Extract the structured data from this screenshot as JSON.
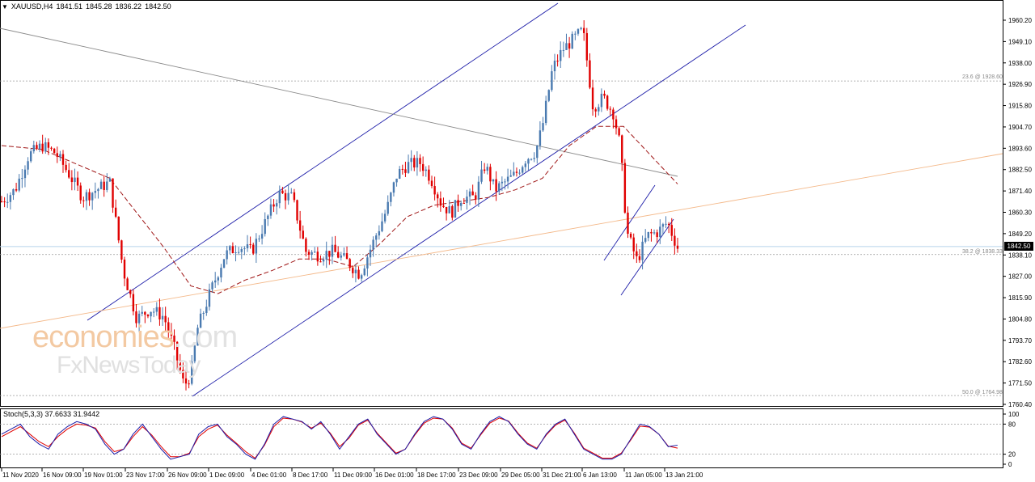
{
  "header": {
    "symbol": "XAUUSD,H4",
    "open": "1841.51",
    "high": "1845.28",
    "low": "1836.22",
    "close": "1842.50"
  },
  "indicator_header": "Stoch(5,3,3) 37.6633 31.9442",
  "watermark": {
    "line1_a": "economies",
    "line1_b": ".com",
    "line2": "FxNewsToday"
  },
  "fib_levels": [
    {
      "label": "23.6 @ 1928.60",
      "price": 1928.6
    },
    {
      "label": "38.2 @ 1838.33",
      "price": 1838.33
    },
    {
      "label": "50.0 @ 1764.98",
      "price": 1764.98
    }
  ],
  "current_price": "1842.50",
  "colors": {
    "bull": "#4a7ab0",
    "bear": "#e00000",
    "channel": "#1c1ca8",
    "ma": "#a01818",
    "stoch_main": "#1c1ca8",
    "stoch_signal": "#e00000"
  },
  "chart_data": {
    "type": "candlestick",
    "symbol": "XAUUSD",
    "timeframe": "H4",
    "price_axis": {
      "ticks": [
        "1960.20",
        "1949.10",
        "1938.00",
        "1926.90",
        "1915.80",
        "1904.70",
        "1893.60",
        "1882.50",
        "1871.40",
        "1860.30",
        "1849.20",
        "1838.10",
        "1827.00",
        "1815.90",
        "1804.80",
        "1793.70",
        "1782.60",
        "1771.50",
        "1760.40"
      ],
      "ylim": [
        1757.0,
        1968.0
      ]
    },
    "time_axis": {
      "ticks": [
        "11 Nov 2020",
        "16 Nov 09:00",
        "19 Nov 01:00",
        "23 Nov 17:00",
        "26 Nov 09:00",
        "1 Dec 09:00",
        "4 Dec 01:00",
        "8 Dec 17:00",
        "11 Dec 09:00",
        "16 Dec 01:00",
        "18 Dec 17:00",
        "23 Dec 09:00",
        "29 Dec 05:00",
        "31 Dec 21:00",
        "6 Jan 13:00",
        "11 Jan 05:00",
        "13 Jan 21:00"
      ]
    },
    "close_path": [
      {
        "t": 0,
        "c": 1866
      },
      {
        "t": 0.02,
        "c": 1872
      },
      {
        "t": 0.04,
        "c": 1890
      },
      {
        "t": 0.06,
        "c": 1895
      },
      {
        "t": 0.08,
        "c": 1891
      },
      {
        "t": 0.1,
        "c": 1880
      },
      {
        "t": 0.12,
        "c": 1868
      },
      {
        "t": 0.14,
        "c": 1872
      },
      {
        "t": 0.16,
        "c": 1876
      },
      {
        "t": 0.18,
        "c": 1830
      },
      {
        "t": 0.2,
        "c": 1805
      },
      {
        "t": 0.22,
        "c": 1810
      },
      {
        "t": 0.24,
        "c": 1806
      },
      {
        "t": 0.255,
        "c": 1790
      },
      {
        "t": 0.27,
        "c": 1770
      },
      {
        "t": 0.28,
        "c": 1776
      },
      {
        "t": 0.29,
        "c": 1800
      },
      {
        "t": 0.31,
        "c": 1820
      },
      {
        "t": 0.33,
        "c": 1838
      },
      {
        "t": 0.35,
        "c": 1843
      },
      {
        "t": 0.37,
        "c": 1840
      },
      {
        "t": 0.39,
        "c": 1855
      },
      {
        "t": 0.41,
        "c": 1870
      },
      {
        "t": 0.43,
        "c": 1868
      },
      {
        "t": 0.45,
        "c": 1840
      },
      {
        "t": 0.47,
        "c": 1838
      },
      {
        "t": 0.49,
        "c": 1840
      },
      {
        "t": 0.51,
        "c": 1835
      },
      {
        "t": 0.53,
        "c": 1828
      },
      {
        "t": 0.55,
        "c": 1845
      },
      {
        "t": 0.57,
        "c": 1862
      },
      {
        "t": 0.585,
        "c": 1880
      },
      {
        "t": 0.6,
        "c": 1885
      },
      {
        "t": 0.62,
        "c": 1886
      },
      {
        "t": 0.635,
        "c": 1878
      },
      {
        "t": 0.65,
        "c": 1865
      },
      {
        "t": 0.665,
        "c": 1860
      },
      {
        "t": 0.68,
        "c": 1868
      },
      {
        "t": 0.7,
        "c": 1868
      },
      {
        "t": 0.715,
        "c": 1885
      },
      {
        "t": 0.73,
        "c": 1872
      },
      {
        "t": 0.745,
        "c": 1876
      },
      {
        "t": 0.76,
        "c": 1880
      },
      {
        "t": 0.775,
        "c": 1888
      },
      {
        "t": 0.79,
        "c": 1892
      },
      {
        "t": 0.8,
        "c": 1905
      },
      {
        "t": 0.815,
        "c": 1935
      },
      {
        "t": 0.83,
        "c": 1945
      },
      {
        "t": 0.845,
        "c": 1950
      },
      {
        "t": 0.86,
        "c": 1955
      },
      {
        "t": 0.875,
        "c": 1915
      },
      {
        "t": 0.89,
        "c": 1920
      },
      {
        "t": 0.905,
        "c": 1912
      },
      {
        "t": 0.915,
        "c": 1895
      },
      {
        "t": 0.925,
        "c": 1850
      },
      {
        "t": 0.94,
        "c": 1835
      },
      {
        "t": 0.955,
        "c": 1848
      },
      {
        "t": 0.97,
        "c": 1850
      },
      {
        "t": 0.985,
        "c": 1855
      },
      {
        "t": 1.0,
        "c": 1842
      }
    ],
    "moving_average": {
      "style": "dashed",
      "points": [
        {
          "t": 0,
          "c": 1895
        },
        {
          "t": 0.06,
          "c": 1893
        },
        {
          "t": 0.12,
          "c": 1884
        },
        {
          "t": 0.16,
          "c": 1878
        },
        {
          "t": 0.2,
          "c": 1860
        },
        {
          "t": 0.24,
          "c": 1842
        },
        {
          "t": 0.28,
          "c": 1822
        },
        {
          "t": 0.32,
          "c": 1818
        },
        {
          "t": 0.36,
          "c": 1825
        },
        {
          "t": 0.4,
          "c": 1830
        },
        {
          "t": 0.44,
          "c": 1836
        },
        {
          "t": 0.48,
          "c": 1836
        },
        {
          "t": 0.52,
          "c": 1832
        },
        {
          "t": 0.56,
          "c": 1844
        },
        {
          "t": 0.6,
          "c": 1858
        },
        {
          "t": 0.64,
          "c": 1864
        },
        {
          "t": 0.68,
          "c": 1866
        },
        {
          "t": 0.72,
          "c": 1868
        },
        {
          "t": 0.76,
          "c": 1872
        },
        {
          "t": 0.8,
          "c": 1878
        },
        {
          "t": 0.84,
          "c": 1895
        },
        {
          "t": 0.88,
          "c": 1905
        },
        {
          "t": 0.92,
          "c": 1905
        },
        {
          "t": 0.96,
          "c": 1890
        },
        {
          "t": 1.0,
          "c": 1875
        }
      ]
    },
    "stochastic": {
      "name": "Stoch(5,3,3)",
      "main_value": 37.6633,
      "signal_value": 31.9442,
      "levels": [
        80,
        20
      ],
      "ticks": [
        "100",
        "80",
        "20",
        "0"
      ],
      "main": [
        60,
        70,
        80,
        55,
        40,
        30,
        60,
        75,
        85,
        80,
        70,
        40,
        20,
        30,
        60,
        80,
        55,
        30,
        10,
        15,
        20,
        60,
        75,
        80,
        55,
        40,
        20,
        10,
        40,
        80,
        95,
        90,
        85,
        70,
        85,
        60,
        30,
        55,
        80,
        90,
        60,
        40,
        20,
        30,
        60,
        85,
        95,
        90,
        70,
        40,
        30,
        60,
        85,
        95,
        85,
        60,
        40,
        30,
        60,
        80,
        90,
        60,
        30,
        20,
        10,
        10,
        20,
        50,
        80,
        75,
        60,
        35,
        38
      ],
      "signal": [
        55,
        65,
        75,
        60,
        45,
        35,
        55,
        70,
        80,
        78,
        72,
        45,
        25,
        30,
        55,
        75,
        58,
        35,
        15,
        15,
        22,
        55,
        70,
        78,
        58,
        42,
        25,
        12,
        38,
        75,
        92,
        90,
        84,
        72,
        82,
        62,
        35,
        52,
        78,
        88,
        62,
        42,
        22,
        30,
        58,
        82,
        92,
        90,
        72,
        42,
        32,
        58,
        82,
        92,
        86,
        62,
        42,
        32,
        58,
        78,
        88,
        62,
        32,
        22,
        12,
        12,
        22,
        48,
        76,
        74,
        60,
        36,
        32
      ]
    }
  }
}
